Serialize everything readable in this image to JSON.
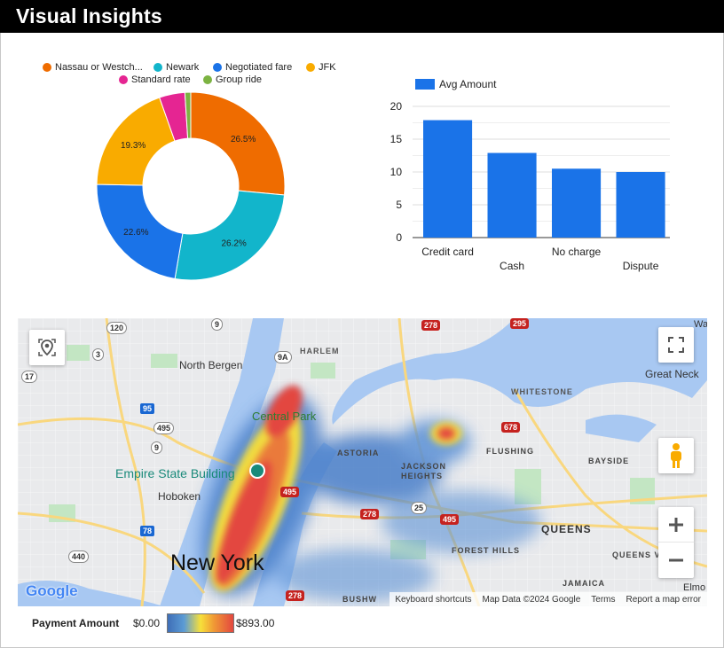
{
  "header": {
    "title": "Visual Insights"
  },
  "pie": {
    "legend": [
      {
        "label": "Nassau or Westch...",
        "color": "#ef6c00"
      },
      {
        "label": "Newark",
        "color": "#12b5cb"
      },
      {
        "label": "Negotiated fare",
        "color": "#1a73e8"
      },
      {
        "label": "JFK",
        "color": "#f9ab00"
      },
      {
        "label": "Standard rate",
        "color": "#e52592"
      },
      {
        "label": "Group ride",
        "color": "#7cb342"
      }
    ],
    "slice_labels": [
      "26.5%",
      "26.2%",
      "22.6%",
      "19.3%"
    ]
  },
  "bar": {
    "legend_label": "Avg Amount",
    "y_ticks": [
      "20",
      "15",
      "10",
      "5",
      "0"
    ],
    "x_labels": [
      "Credit card",
      "Cash",
      "No charge",
      "Dispute"
    ]
  },
  "chart_data": [
    {
      "type": "pie",
      "donut": true,
      "categories": [
        "Nassau or Westch...",
        "Newark",
        "Negotiated fare",
        "JFK",
        "Standard rate",
        "Group ride"
      ],
      "values": [
        26.5,
        26.2,
        22.6,
        19.3,
        4.4,
        1.0
      ],
      "colors": [
        "#ef6c00",
        "#12b5cb",
        "#1a73e8",
        "#f9ab00",
        "#e52592",
        "#7cb342"
      ],
      "legend": "top"
    },
    {
      "type": "bar",
      "categories": [
        "Credit card",
        "Cash",
        "No charge",
        "Dispute"
      ],
      "series": [
        {
          "name": "Avg Amount",
          "values": [
            17.9,
            12.9,
            10.5,
            10.0
          ],
          "color": "#1a73e8"
        }
      ],
      "ylim": [
        0,
        20
      ],
      "yticks": [
        0,
        5,
        10,
        15,
        20
      ],
      "grid": true,
      "legend": "top-left"
    }
  ],
  "map": {
    "labels": {
      "harlem": "HARLEM",
      "north_bergen": "North Bergen",
      "central_park": "Central Park",
      "whitestone": "WHITESTONE",
      "great_neck": "Great Neck",
      "astoria": "ASTORIA",
      "jackson_heights": "JACKSON\nHEIGHTS",
      "flushing": "FLUSHING",
      "bayside": "BAYSIDE",
      "empire_state": "Empire State Building",
      "hoboken": "Hoboken",
      "queens": "QUEENS",
      "forest_hills": "FOREST HILLS",
      "queens_v": "QUEENS V",
      "new_york": "New York",
      "jamaica": "JAMAICA",
      "elmo": "Elmo",
      "bushw": "BUSHW",
      "wa": "Wa"
    },
    "shields": [
      "120",
      "9",
      "3",
      "17",
      "95",
      "495",
      "9",
      "78",
      "440",
      "9A",
      "278",
      "295",
      "678",
      "495",
      "278",
      "25",
      "495",
      "278"
    ],
    "logo": "Google",
    "footer": {
      "shortcuts": "Keyboard shortcuts",
      "map_data": "Map Data ©2024 Google",
      "terms": "Terms",
      "report": "Report a map error"
    }
  },
  "heat_legend": {
    "title": "Payment Amount",
    "min": "$0.00",
    "max": "$893.00"
  }
}
